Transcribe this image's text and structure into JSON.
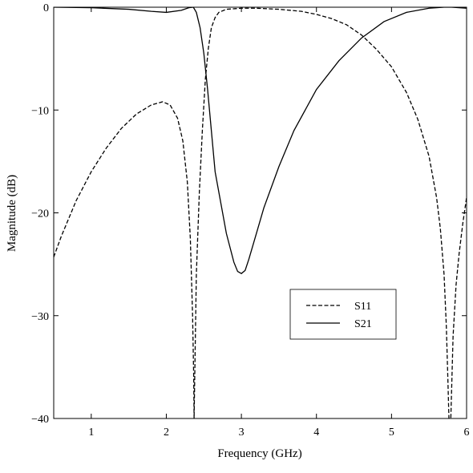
{
  "chart_data": {
    "type": "line",
    "title": "",
    "xlabel": "Frequency (GHz)",
    "ylabel": "Magnitude (dB)",
    "xlim": [
      0.5,
      6
    ],
    "ylim": [
      -40,
      0
    ],
    "xticks": [
      1,
      2,
      3,
      4,
      5,
      6
    ],
    "yticks": [
      0,
      -10,
      -20,
      -30,
      -40
    ],
    "xtick_labels": [
      "1",
      "2",
      "3",
      "4",
      "5",
      "6"
    ],
    "ytick_labels": [
      "0",
      "−10",
      "−20",
      "−30",
      "−40"
    ],
    "grid": false,
    "legend_position": "center-right",
    "series": [
      {
        "name": "S11",
        "style": "dashed",
        "color": "#000000",
        "x": [
          0.5,
          0.6,
          0.8,
          1.0,
          1.2,
          1.4,
          1.6,
          1.8,
          1.95,
          2.05,
          2.15,
          2.22,
          2.28,
          2.32,
          2.35,
          2.365,
          2.37,
          2.4,
          2.44,
          2.48,
          2.52,
          2.56,
          2.6,
          2.65,
          2.7,
          2.8,
          3.0,
          3.2,
          3.5,
          3.8,
          4.0,
          4.2,
          4.4,
          4.6,
          4.8,
          5.0,
          5.2,
          5.35,
          5.5,
          5.6,
          5.65,
          5.7,
          5.73,
          5.75,
          5.765,
          5.79,
          5.82,
          5.86,
          5.9,
          5.95,
          6.0
        ],
        "y": [
          -24.3,
          -22.3,
          -18.8,
          -16.0,
          -13.7,
          -11.8,
          -10.4,
          -9.5,
          -9.2,
          -9.5,
          -10.8,
          -13.0,
          -17.0,
          -22.5,
          -30.0,
          -36.0,
          -40.0,
          -26.0,
          -18.0,
          -12.0,
          -7.0,
          -4.0,
          -2.0,
          -1.0,
          -0.5,
          -0.2,
          -0.1,
          -0.1,
          -0.2,
          -0.4,
          -0.7,
          -1.1,
          -1.7,
          -2.7,
          -4.1,
          -5.8,
          -8.3,
          -10.9,
          -14.5,
          -18.5,
          -21.5,
          -26.0,
          -31.0,
          -36.0,
          -40.0,
          -40.0,
          -32.0,
          -27.0,
          -24.0,
          -21.0,
          -18.5
        ]
      },
      {
        "name": "S21",
        "style": "solid",
        "color": "#000000",
        "x": [
          0.5,
          1.0,
          1.5,
          1.8,
          2.0,
          2.2,
          2.3,
          2.36,
          2.4,
          2.45,
          2.5,
          2.55,
          2.6,
          2.65,
          2.7,
          2.8,
          2.9,
          2.95,
          3.0,
          3.05,
          3.1,
          3.2,
          3.3,
          3.5,
          3.7,
          4.0,
          4.3,
          4.6,
          4.9,
          5.2,
          5.5,
          5.7,
          5.8,
          6.0
        ],
        "y": [
          0.0,
          -0.05,
          -0.2,
          -0.4,
          -0.5,
          -0.3,
          -0.05,
          0.0,
          -0.5,
          -2.0,
          -4.5,
          -8.0,
          -12.0,
          -16.0,
          -18.0,
          -22.0,
          -24.8,
          -25.7,
          -25.9,
          -25.6,
          -24.5,
          -22.0,
          -19.5,
          -15.5,
          -12.0,
          -8.0,
          -5.2,
          -3.0,
          -1.4,
          -0.5,
          -0.1,
          0.0,
          0.0,
          -0.1
        ]
      }
    ]
  }
}
